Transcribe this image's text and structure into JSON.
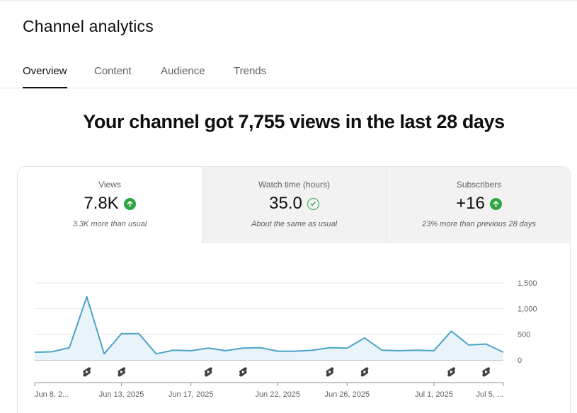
{
  "page": {
    "title": "Channel analytics"
  },
  "tabs": [
    {
      "label": "Overview",
      "active": true
    },
    {
      "label": "Content",
      "active": false
    },
    {
      "label": "Audience",
      "active": false
    },
    {
      "label": "Trends",
      "active": false
    }
  ],
  "headline": "Your channel got 7,755 views in the last 28 days",
  "metrics": [
    {
      "label": "Views",
      "value": "7.8K",
      "status_icon": "arrow-up-circle-icon",
      "note": "3.3K more than usual"
    },
    {
      "label": "Watch time (hours)",
      "value": "35.0",
      "status_icon": "check-circle-icon",
      "note": "About the same as usual"
    },
    {
      "label": "Subscribers",
      "value": "+16",
      "status_icon": "arrow-up-circle-icon",
      "note": "23% more than previous 28 days"
    }
  ],
  "colors": {
    "accent_line": "#4ba3c7",
    "accent_fill": "#e8f4f9",
    "positive": "#2ba640"
  },
  "chart_data": {
    "type": "area",
    "series": [
      {
        "values": [
          150,
          160,
          240,
          1230,
          120,
          510,
          510,
          120,
          190,
          180,
          230,
          180,
          230,
          240,
          170,
          170,
          190,
          240,
          230,
          430,
          190,
          180,
          190,
          180,
          560,
          290,
          310,
          150
        ]
      }
    ],
    "x_ticks": [
      "Jun 8, 2...",
      "Jun 13, 2025",
      "Jun 17, 2025",
      "Jun 22, 2025",
      "Jun 26, 2025",
      "Jul 1, 2025",
      "Jul 5, ..."
    ],
    "x_tick_index": [
      0,
      5,
      9,
      14,
      18,
      23,
      27
    ],
    "y_ticks": [
      "1,500",
      "1,000",
      "500",
      "0"
    ],
    "y_tick_values": [
      1500,
      1000,
      500,
      0
    ],
    "ylim": [
      0,
      1500
    ],
    "marker_index": [
      3,
      5,
      10,
      12,
      17,
      19,
      24,
      26
    ],
    "marker_icon": "shorts-icon",
    "grid": true
  }
}
